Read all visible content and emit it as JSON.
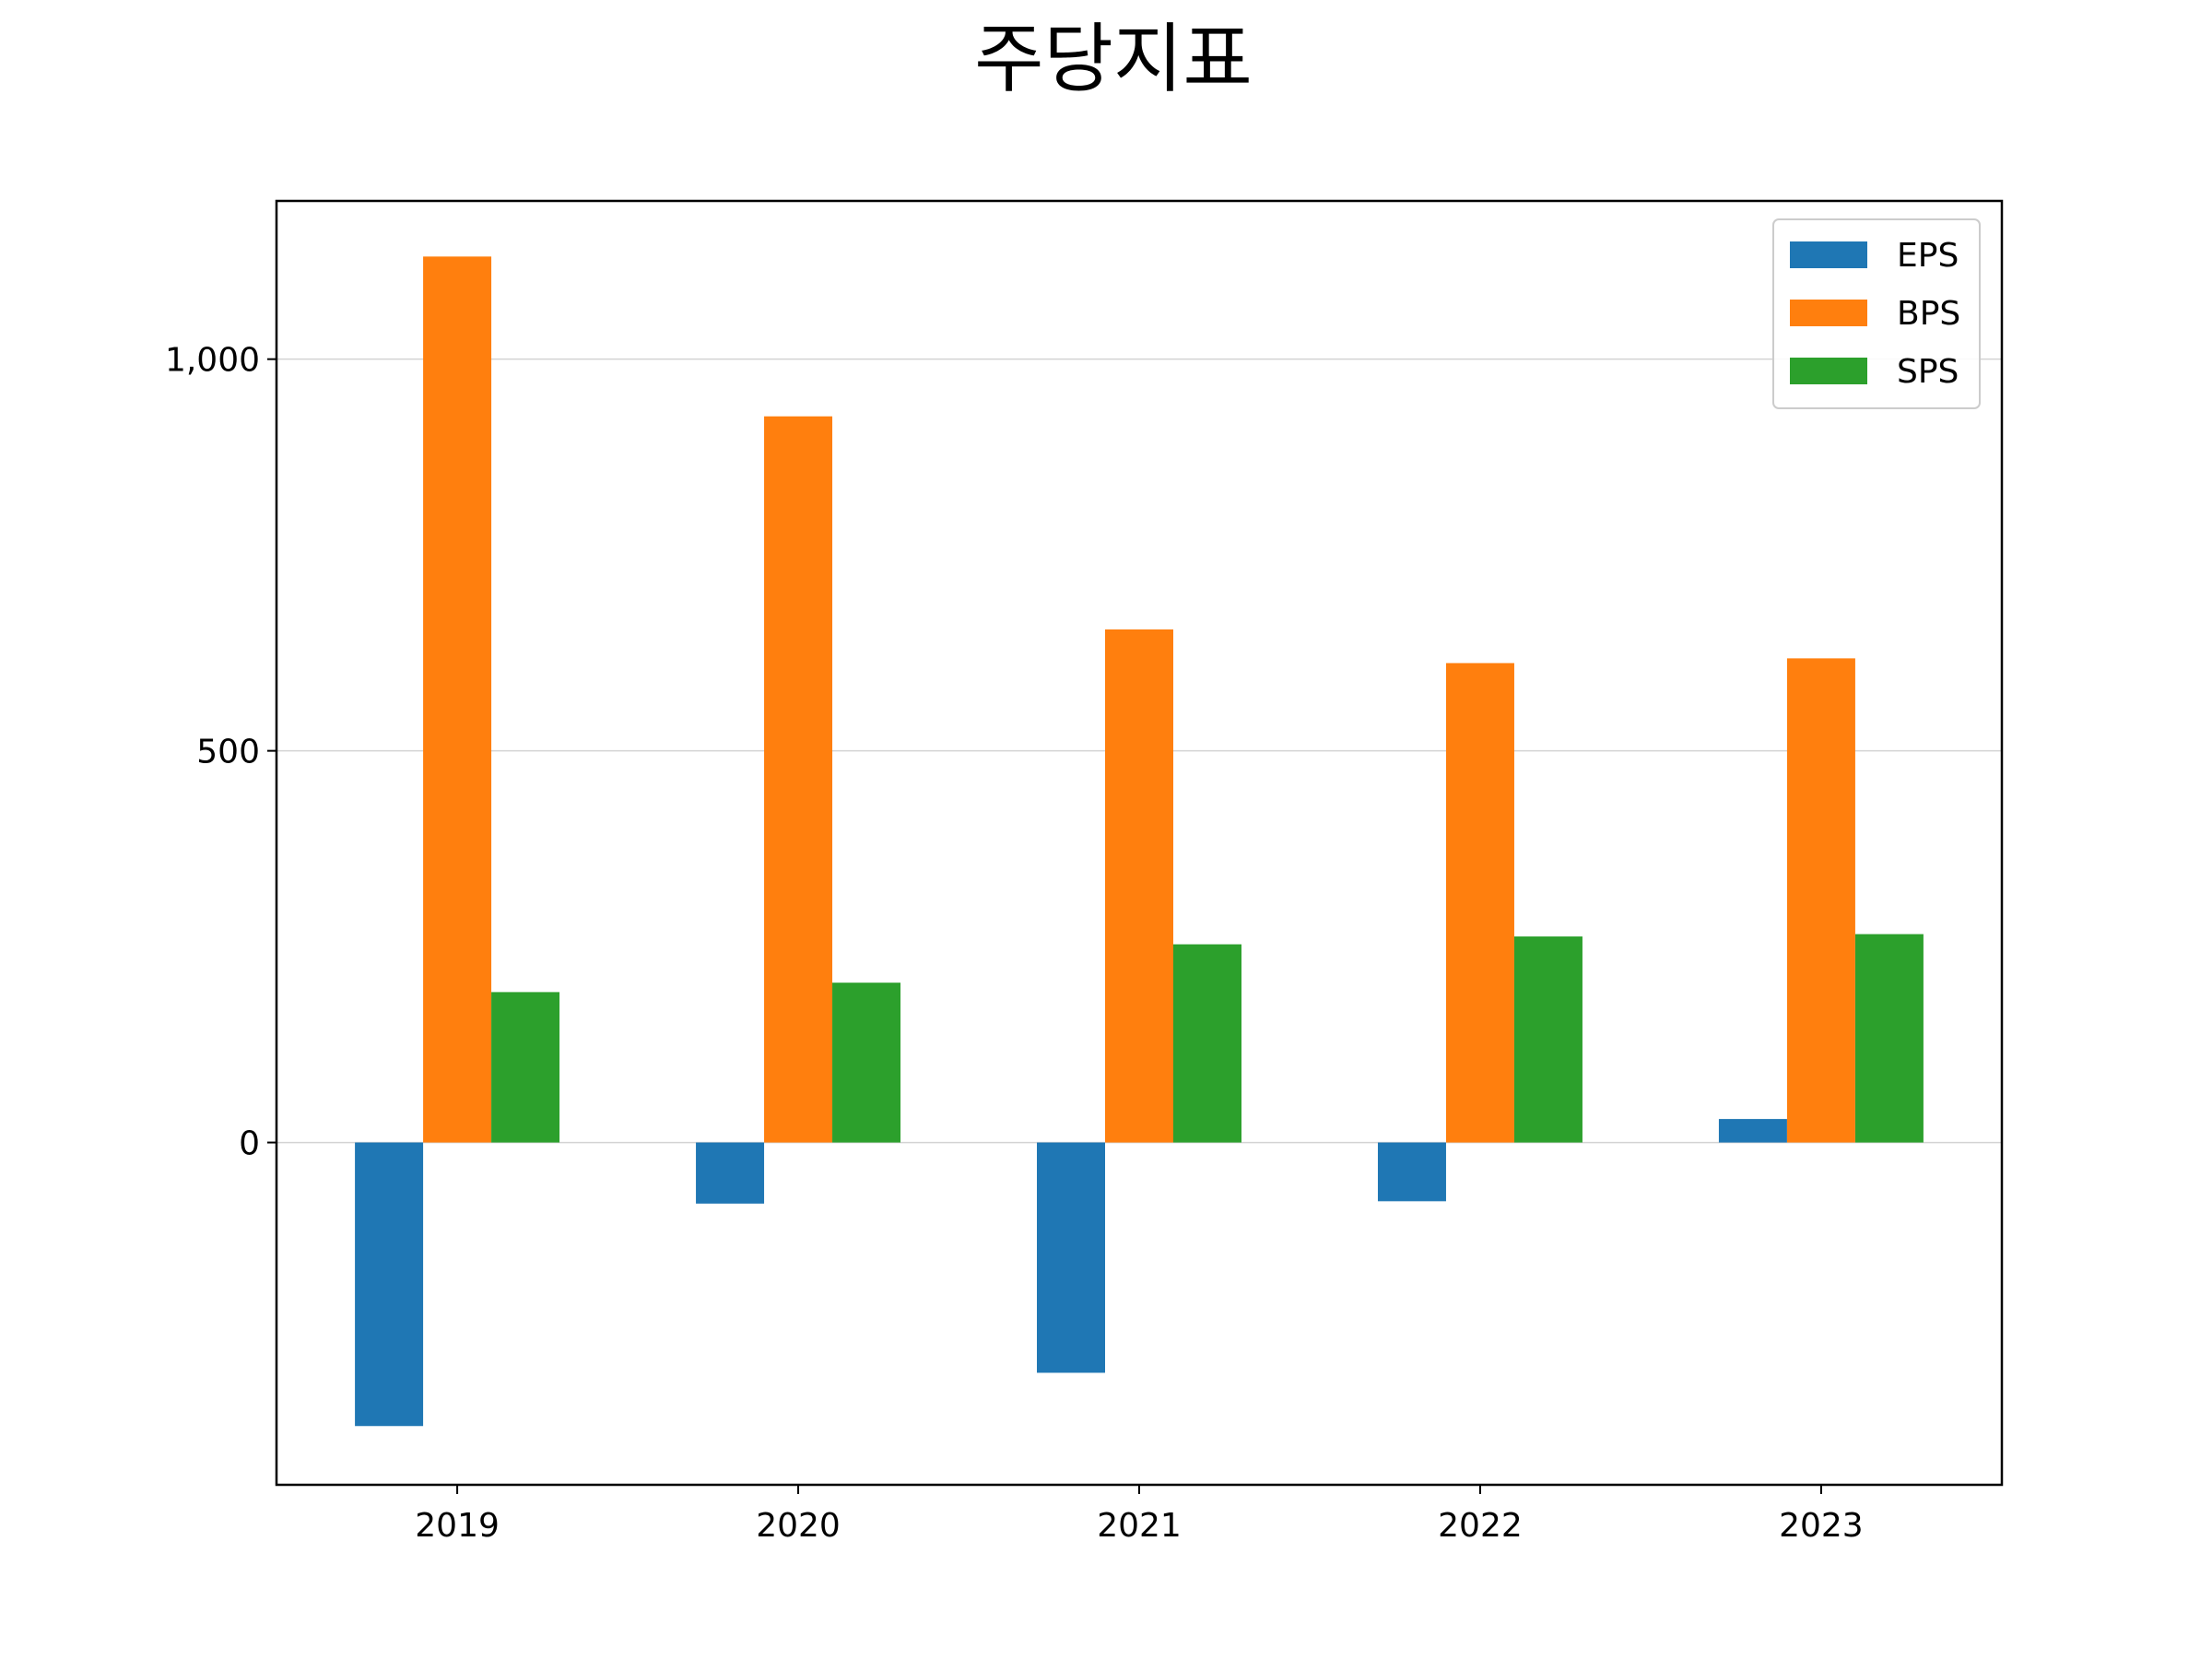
{
  "chart_data": {
    "type": "bar",
    "title": "주당지표",
    "xlabel": "",
    "ylabel": "",
    "categories": [
      "2019",
      "2020",
      "2021",
      "2022",
      "2023"
    ],
    "series": [
      {
        "name": "EPS",
        "color": "#1f77b4",
        "values": [
          -362,
          -78,
          -294,
          -75,
          30
        ]
      },
      {
        "name": "BPS",
        "color": "#ff7f0e",
        "values": [
          1131,
          927,
          655,
          612,
          618
        ]
      },
      {
        "name": "SPS",
        "color": "#2ca02c",
        "values": [
          192,
          204,
          253,
          263,
          266
        ]
      }
    ],
    "ylim": [
      -437,
      1202
    ],
    "yticks": [
      0,
      500,
      1000
    ],
    "ytick_labels": [
      "0",
      "500",
      "1,000"
    ],
    "grid": "horizontal",
    "legend_position": "top-right"
  }
}
